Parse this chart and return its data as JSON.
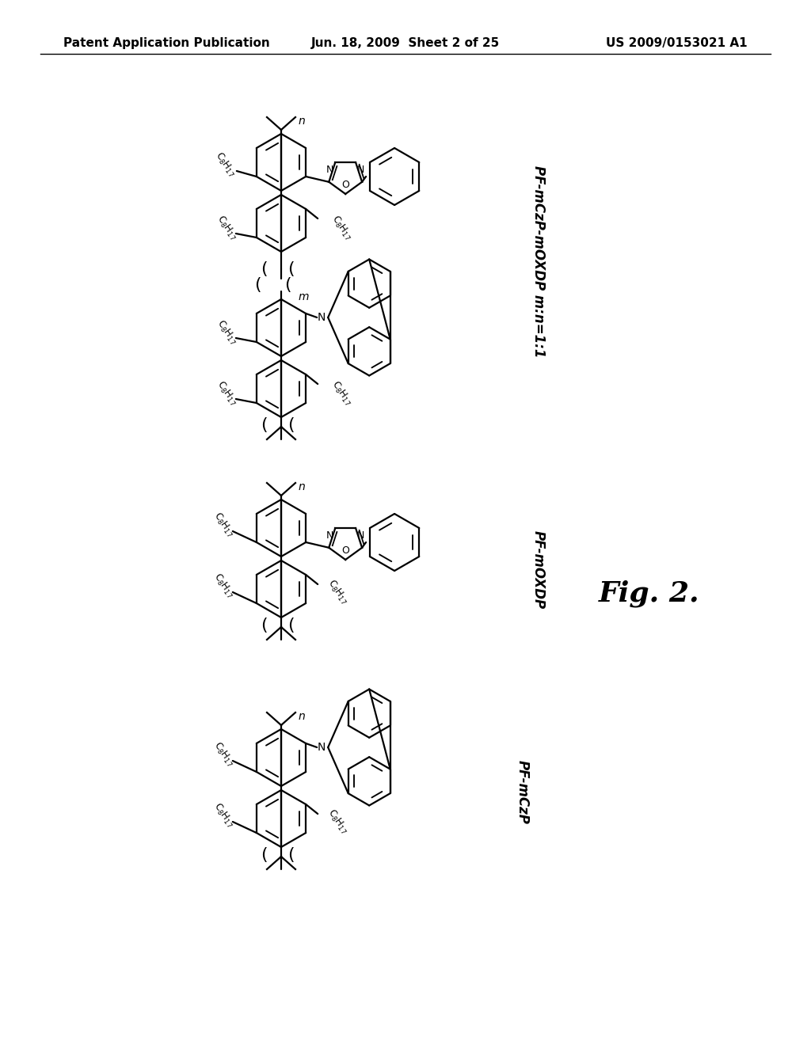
{
  "background_color": "#ffffff",
  "fig_width": 10.24,
  "fig_height": 13.2,
  "header_left": "Patent Application Publication",
  "header_center": "Jun. 18, 2009  Sheet 2 of 25",
  "header_right": "US 2009/0153021 A1",
  "header_fontsize": 11,
  "fig_label": "Fig. 2.",
  "fig_label_fontsize": 26
}
